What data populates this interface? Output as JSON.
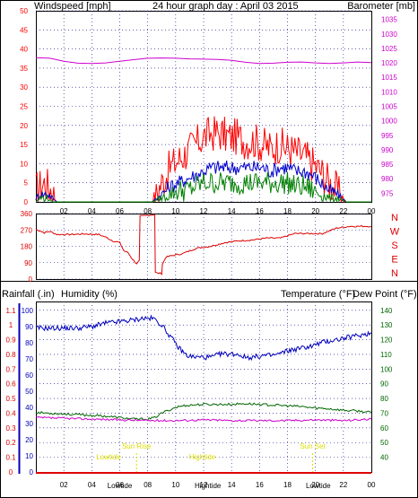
{
  "colors": {
    "wind": "#ff0000",
    "barometer": "#cc00cc",
    "gust_avg": "#0000cc",
    "wind_low": "#008000",
    "direction": "#dd0000",
    "rain": "#dd0000",
    "humidity": "#0000bb",
    "temperature": "#006600",
    "dewpoint": "#cc00cc",
    "grid": "#000080",
    "tide": "#dddd00",
    "frame": "#000000"
  },
  "chart_data": [
    {
      "type": "line",
      "title": "24 hour graph day : April 03 2015",
      "left_label": "Windspeed [mph]",
      "right_label": "Barometer [mb]",
      "x_ticks": [
        "02",
        "04",
        "06",
        "08",
        "10",
        "12",
        "14",
        "16",
        "18",
        "20",
        "22",
        "00"
      ],
      "y_left_ticks": [
        0,
        5,
        10,
        15,
        20,
        25,
        30,
        35,
        40,
        45,
        50
      ],
      "y_left_range": [
        0,
        50
      ],
      "y_right_ticks": [
        975,
        980,
        985,
        990,
        995,
        1000,
        1005,
        1010,
        1015,
        1020,
        1025,
        1030,
        1035
      ],
      "y_right_range": [
        972,
        1038
      ],
      "series": [
        {
          "key": "gust",
          "x": [
            0,
            0.3,
            0.6,
            0.9,
            1.2,
            1.5,
            8.3,
            9.0,
            9.6,
            10.2,
            10.8,
            11.4,
            12.0,
            12.6,
            13.2,
            13.8,
            14.4,
            15.0,
            15.6,
            16.2,
            16.8,
            17.4,
            18.0,
            18.6,
            19.2,
            19.8,
            20.4,
            21.0,
            21.6,
            22.2,
            24
          ],
          "y": [
            3,
            4,
            5,
            4,
            3,
            0,
            0,
            5,
            9,
            11,
            13,
            15,
            17,
            18,
            18,
            17,
            17,
            16,
            16,
            15,
            14,
            15,
            14,
            13,
            12,
            10,
            8,
            5,
            3,
            0,
            0
          ]
        },
        {
          "key": "avg",
          "x": [
            0,
            0.3,
            0.6,
            0.9,
            1.2,
            1.5,
            8.3,
            9.0,
            9.6,
            10.2,
            10.8,
            11.4,
            12.0,
            12.6,
            13.2,
            13.8,
            14.4,
            15.0,
            15.6,
            16.2,
            16.8,
            17.4,
            18.0,
            18.6,
            19.2,
            19.8,
            20.4,
            21.0,
            21.6,
            22.2,
            24
          ],
          "y": [
            1,
            2,
            2,
            2,
            1,
            0,
            0,
            2,
            4,
            5,
            6,
            7,
            8,
            9,
            9,
            9,
            9,
            9,
            9,
            9,
            8,
            9,
            9,
            8,
            8,
            7,
            5,
            3,
            2,
            0,
            0
          ]
        },
        {
          "key": "low",
          "x": [
            0,
            0.3,
            0.6,
            0.9,
            1.2,
            1.5,
            8.3,
            9.0,
            9.6,
            10.2,
            10.8,
            11.4,
            12.0,
            12.6,
            13.2,
            13.8,
            14.4,
            15.0,
            15.6,
            16.2,
            16.8,
            17.4,
            18.0,
            18.6,
            19.2,
            19.8,
            20.4,
            21.0,
            21.6,
            22.2,
            24
          ],
          "y": [
            0,
            1,
            1,
            1,
            0,
            0,
            0,
            1,
            2,
            3,
            3,
            4,
            5,
            5,
            5,
            5,
            5,
            5,
            5,
            5,
            5,
            5,
            5,
            4,
            4,
            3,
            2,
            1,
            1,
            0,
            0
          ]
        },
        {
          "key": "barometer",
          "x": [
            0,
            1,
            2,
            3,
            4,
            5,
            6,
            7,
            8,
            9,
            10,
            11,
            12,
            13,
            14,
            15,
            16,
            17,
            18,
            19,
            20,
            21,
            22,
            23,
            24
          ],
          "y": [
            1021.8,
            1021.6,
            1020.6,
            1019.9,
            1019.8,
            1020.0,
            1020.6,
            1021.1,
            1021.6,
            1021.7,
            1021.6,
            1021.4,
            1021.3,
            1021.2,
            1020.9,
            1020.2,
            1019.8,
            1019.9,
            1020.2,
            1020.3,
            1020.0,
            1019.8,
            1020.0,
            1020.3,
            1020.1
          ]
        }
      ]
    },
    {
      "type": "line",
      "y_ticks": [
        360,
        270,
        180,
        90,
        0
      ],
      "y_range": [
        0,
        360
      ],
      "right_labels": [
        "N",
        "W",
        "S",
        "E",
        "N"
      ],
      "series": [
        {
          "key": "direction",
          "x": [
            0,
            0.3,
            0.6,
            1.0,
            1.5,
            2.5,
            3.5,
            4.5,
            5.0,
            5.5,
            6.0,
            6.3,
            6.6,
            6.9,
            7.2,
            7.4,
            7.45,
            8.5,
            8.55,
            9.0,
            9.05,
            9.3,
            9.8,
            10.5,
            11.5,
            12.5,
            13.5,
            14.5,
            15.5,
            16.5,
            17.5,
            18.5,
            19.5,
            20.5,
            21.5,
            22.5,
            24
          ],
          "y": [
            272,
            265,
            255,
            262,
            245,
            245,
            248,
            245,
            230,
            210,
            200,
            155,
            145,
            110,
            85,
            100,
            345,
            355,
            35,
            30,
            80,
            120,
            130,
            140,
            170,
            180,
            200,
            210,
            215,
            225,
            225,
            250,
            250,
            250,
            280,
            290,
            290
          ]
        }
      ]
    },
    {
      "type": "line",
      "left1_label": "Rainfall (.in)",
      "left2_label": "Humidity (%)",
      "right1_label": "Temperature (°F)",
      "right2_label": "Dew Point (°F)",
      "rain_ticks": [
        0,
        0.1,
        0.2,
        0.3,
        0.4,
        0.5,
        0.6,
        0.7,
        0.8,
        0.9,
        1,
        1.1
      ],
      "rain_tick_labels": [
        "0",
        "0.1",
        "0.2",
        "0.3",
        "0.4",
        "0.5",
        "0.6",
        "0.7",
        "0.8",
        "0.9",
        "1",
        "1.1"
      ],
      "humidity_ticks": [
        0,
        10,
        20,
        30,
        40,
        50,
        60,
        70,
        80,
        90,
        100
      ],
      "temp_ticks": [
        40,
        50,
        60,
        70,
        80,
        90,
        100,
        110,
        120,
        130,
        140
      ],
      "temp_range": [
        30,
        146
      ],
      "series": [
        {
          "key": "humidity",
          "x": [
            0,
            1,
            2,
            3,
            4,
            5,
            6,
            7,
            7.5,
            8,
            8.4,
            9,
            9.6,
            10.2,
            10.8,
            11.4,
            12,
            12.6,
            13.2,
            13.8,
            14.4,
            15,
            15.6,
            16.2,
            16.8,
            17.4,
            18,
            18.6,
            19.2,
            19.8,
            20.4,
            21,
            21.6,
            22.2,
            22.8,
            23.4,
            24
          ],
          "y": [
            89,
            89,
            89,
            89,
            90,
            92,
            93,
            94,
            95,
            95,
            95,
            91,
            84,
            77,
            72,
            71,
            71,
            71,
            73,
            73,
            73,
            71,
            71,
            72,
            72,
            73,
            75,
            76,
            77,
            78,
            80,
            81,
            82,
            83,
            84,
            85,
            86
          ]
        },
        {
          "key": "temperature",
          "x": [
            0,
            1,
            2,
            3,
            4,
            5,
            6,
            7,
            7.5,
            8,
            8.5,
            9,
            10,
            10.5,
            11,
            12,
            13,
            14,
            15,
            16,
            17,
            18,
            19,
            20,
            21,
            22,
            23,
            24
          ],
          "y": [
            70.5,
            70,
            69.5,
            69,
            68.5,
            68,
            67,
            66,
            66,
            66,
            67,
            70,
            74,
            75,
            75.5,
            76,
            76,
            76,
            76.5,
            76,
            75.5,
            75,
            74.5,
            73.5,
            73,
            72,
            71.5,
            70.5
          ]
        },
        {
          "key": "dewpoint",
          "x": [
            0,
            2,
            4,
            6,
            8,
            10,
            12,
            14,
            16,
            18,
            20,
            22,
            24
          ],
          "y": [
            67,
            66.5,
            66,
            65.5,
            65,
            65,
            65.5,
            65,
            65,
            65,
            65.5,
            65,
            66
          ]
        },
        {
          "key": "rain",
          "x": [
            0,
            24
          ],
          "y": [
            0,
            0
          ]
        }
      ],
      "annotations": [
        {
          "text": "Sun Rise",
          "x": 7.2
        },
        {
          "text": "Lowtide",
          "x": 5.2
        },
        {
          "text": "Hightide",
          "x": 11.9
        },
        {
          "text": "Sun Set",
          "x": 19.8
        },
        {
          "text": "Lowtide",
          "x": 6.0
        },
        {
          "text": "Hightide",
          "x": 12.3
        },
        {
          "text": "Lowtide",
          "x": 20.2
        }
      ]
    }
  ]
}
